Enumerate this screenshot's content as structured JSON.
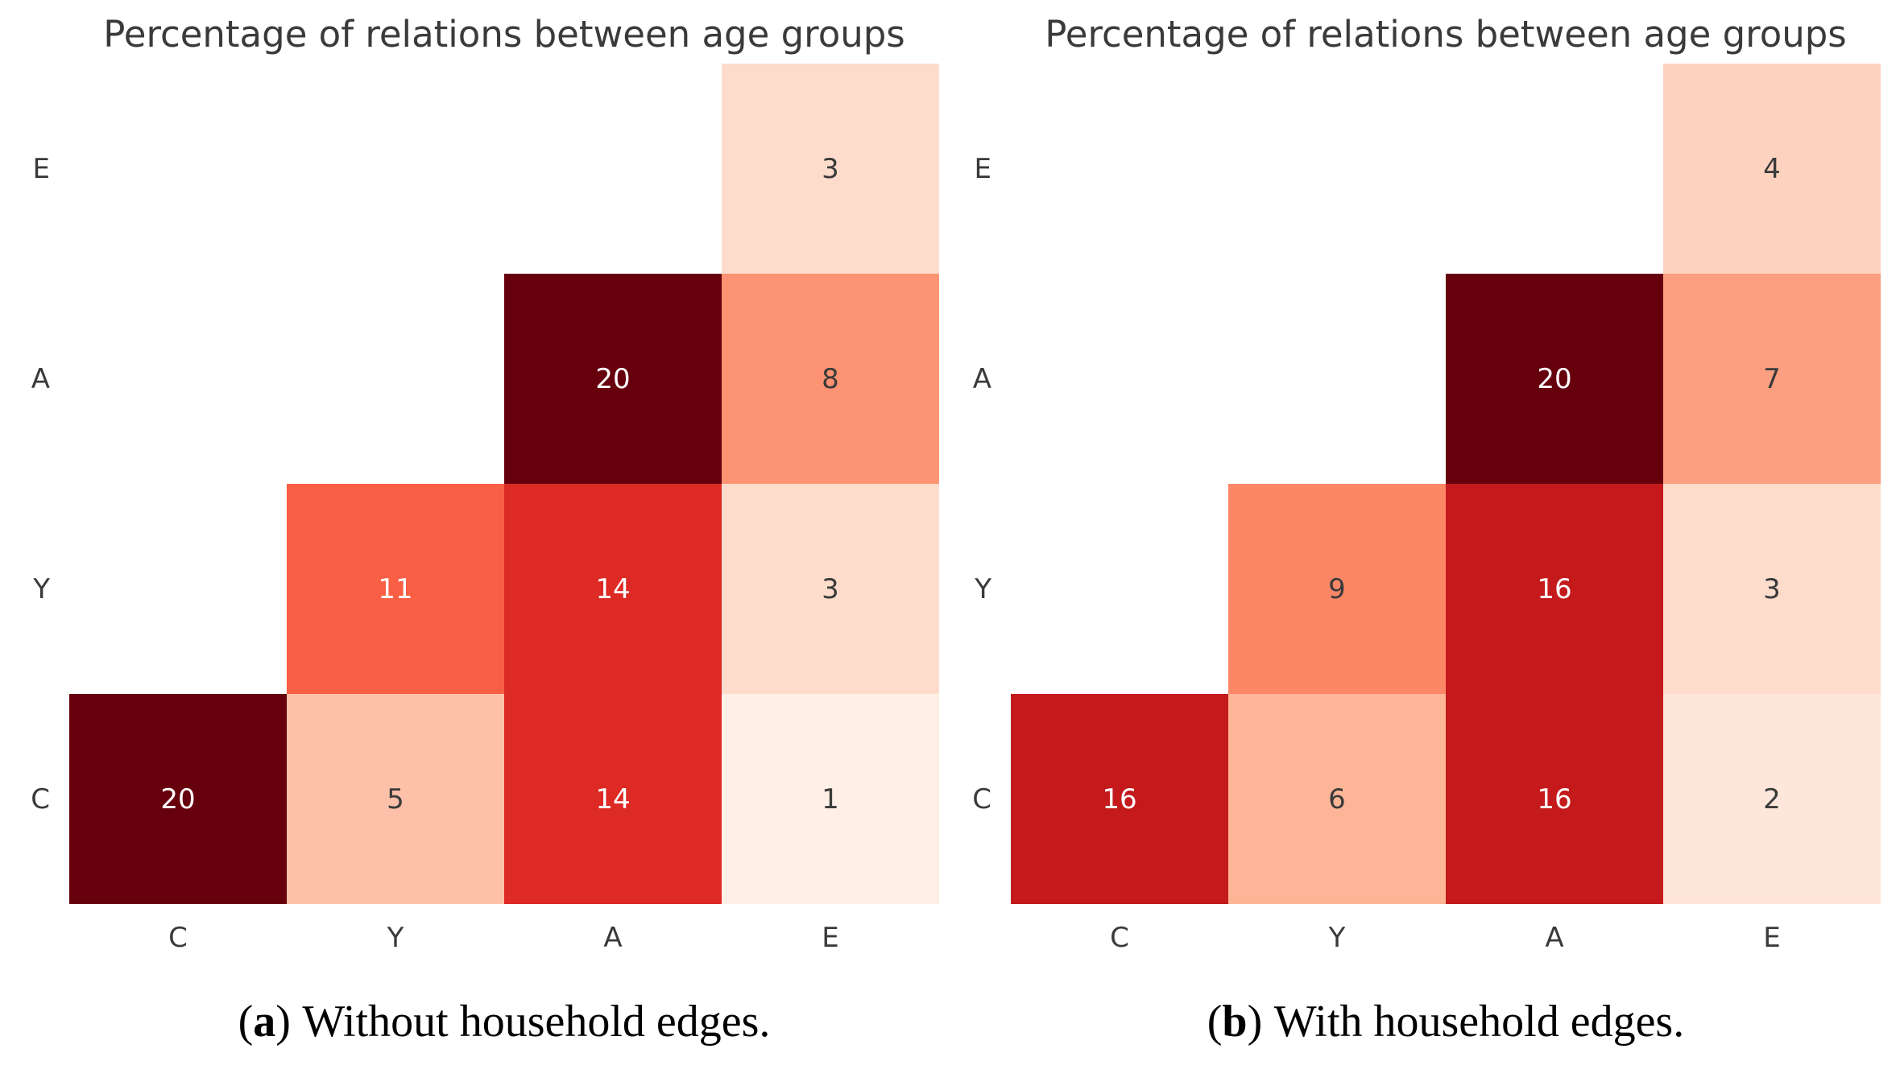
{
  "page": {
    "background": "#ffffff"
  },
  "chart_data": [
    {
      "type": "heatmap",
      "title": "Percentage of relations between age groups",
      "x_labels": [
        "C",
        "Y",
        "A",
        "E"
      ],
      "y_labels": [
        "E",
        "A",
        "Y",
        "C"
      ],
      "rows": [
        [
          null,
          null,
          null,
          3
        ],
        [
          null,
          null,
          20,
          8
        ],
        [
          null,
          11,
          14,
          3
        ],
        [
          20,
          5,
          14,
          1
        ]
      ],
      "caption": {
        "open": "(",
        "label": "a",
        "close": ")",
        "text": "Without household edges."
      }
    },
    {
      "type": "heatmap",
      "title": "Percentage of relations between age groups",
      "x_labels": [
        "C",
        "Y",
        "A",
        "E"
      ],
      "y_labels": [
        "E",
        "A",
        "Y",
        "C"
      ],
      "rows": [
        [
          null,
          null,
          null,
          4
        ],
        [
          null,
          null,
          20,
          7
        ],
        [
          null,
          9,
          16,
          3
        ],
        [
          16,
          6,
          16,
          2
        ]
      ],
      "caption": {
        "open": "(",
        "label": "b",
        "close": ")",
        "text": "With household edges."
      }
    }
  ],
  "style": {
    "colormap": {
      "1": "#feefe7",
      "2": "#fee7da",
      "3": "#fddccb",
      "4": "#fdd2bf",
      "5": "#fcc1a8",
      "6": "#fcb697",
      "7": "#fc9e80",
      "8": "#fc9373",
      "9": "#fc8767",
      "11": "#f95f45",
      "14": "#dd2a24",
      "16": "#c41a1b",
      "20": "#67000d"
    },
    "text_light_threshold": 10,
    "cell_text_light": "#ffffff",
    "cell_text_dark": "#3a3a3a",
    "tick_label_color": "#3a3a3a",
    "title_color": "#3a3a3a",
    "caption_color": "#000000"
  }
}
